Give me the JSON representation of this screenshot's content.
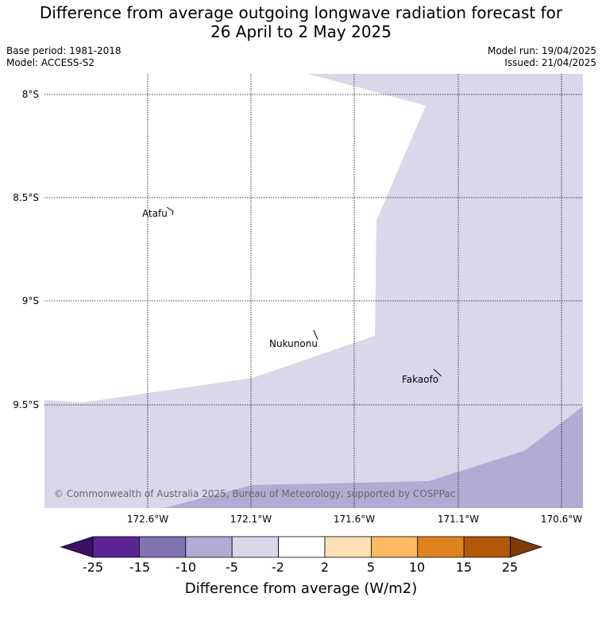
{
  "header": {
    "title_line1": "Difference from average outgoing longwave radiation forecast for",
    "title_line2": "26 April to 2 May 2025",
    "base_period": "Base period: 1981-2018",
    "model": "Model: ACCESS-S2",
    "model_run": "Model run: 19/04/2025",
    "issued": "Issued: 21/04/2025"
  },
  "map": {
    "lat_labels": [
      "8°S",
      "8.5°S",
      "9°S",
      "9.5°S"
    ],
    "lon_labels": [
      "172.6°W",
      "172.1°W",
      "171.6°W",
      "171.1°W",
      "170.6°W"
    ],
    "places": [
      "Atafu",
      "Nukunonu",
      "Fakaofo"
    ],
    "copyright": "© Commonwealth of Australia 2025, Bureau of Meteorology, supported by COSPPac",
    "region_colors": {
      "minus5_to_minus2": "#d8d8ea",
      "minus10_to_minus5": "#b2acd4"
    }
  },
  "legend": {
    "title": "Difference from average (W/m2)",
    "ticks": [
      "-25",
      "-15",
      "-10",
      "-5",
      "-2",
      "2",
      "5",
      "10",
      "15",
      "25"
    ],
    "colors": [
      "#3b0f63",
      "#5a2592",
      "#8073b0",
      "#b2acd4",
      "#d8d8ea",
      "#ffffff",
      "#fde0b6",
      "#fdb863",
      "#e0821e",
      "#b35806",
      "#7f3b08"
    ]
  }
}
